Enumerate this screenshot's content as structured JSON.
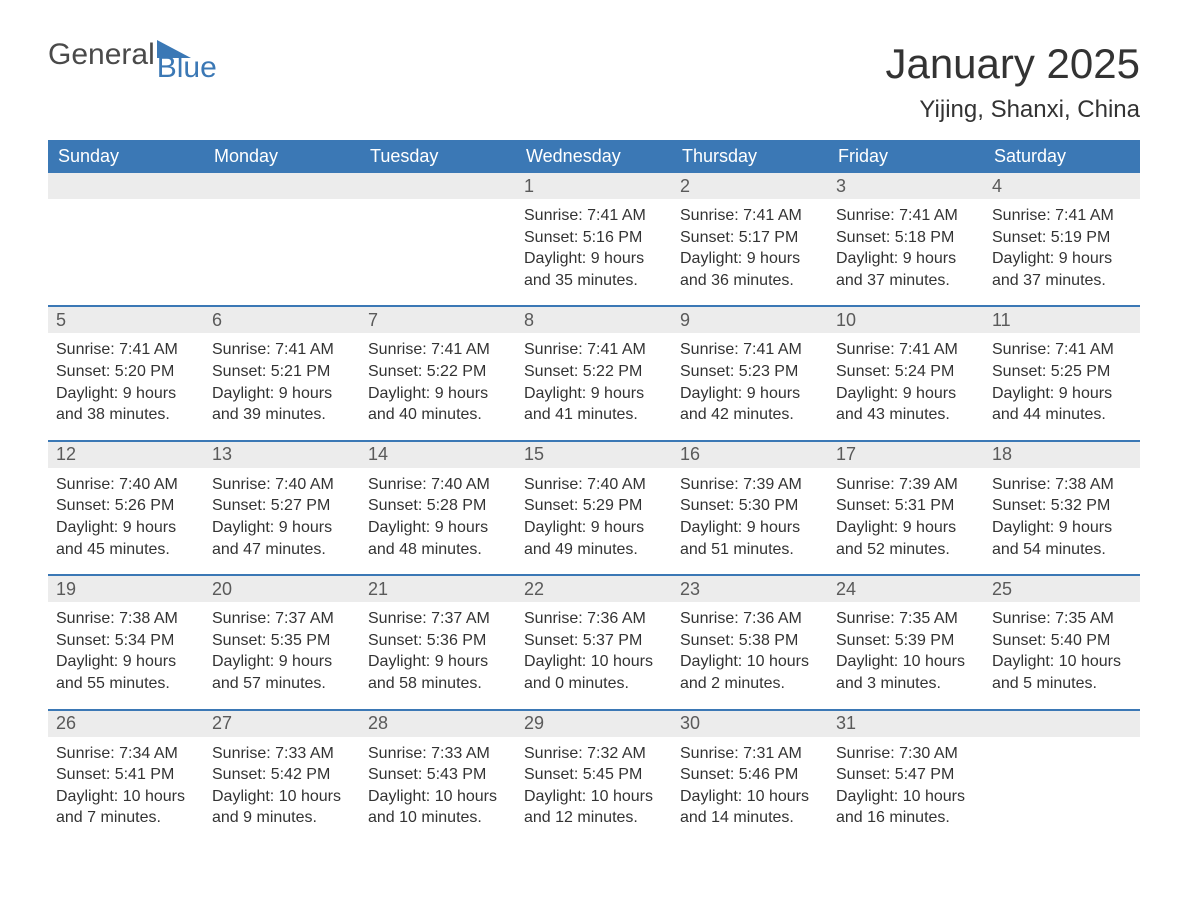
{
  "colors": {
    "header_bg": "#3b78b5",
    "header_text": "#ffffff",
    "daynum_bg": "#ececec",
    "daynum_text": "#5a5a5a",
    "body_text": "#333333",
    "week_border": "#3b78b5",
    "logo_gray": "#4a4a4a",
    "logo_blue": "#3b78b5",
    "background": "#ffffff"
  },
  "typography": {
    "title_fontsize": 42,
    "location_fontsize": 24,
    "header_fontsize": 18,
    "daynum_fontsize": 18,
    "body_fontsize": 16,
    "logo_fontsize": 30
  },
  "logo": {
    "text1": "General",
    "text2": "Blue"
  },
  "title": "January 2025",
  "location": "Yijing, Shanxi, China",
  "day_headers": [
    "Sunday",
    "Monday",
    "Tuesday",
    "Wednesday",
    "Thursday",
    "Friday",
    "Saturday"
  ],
  "labels": {
    "sunrise": "Sunrise: ",
    "sunset": "Sunset: ",
    "daylight": "Daylight: "
  },
  "weeks": [
    [
      null,
      null,
      null,
      {
        "n": "1",
        "sunrise": "7:41 AM",
        "sunset": "5:16 PM",
        "daylight": "9 hours and 35 minutes."
      },
      {
        "n": "2",
        "sunrise": "7:41 AM",
        "sunset": "5:17 PM",
        "daylight": "9 hours and 36 minutes."
      },
      {
        "n": "3",
        "sunrise": "7:41 AM",
        "sunset": "5:18 PM",
        "daylight": "9 hours and 37 minutes."
      },
      {
        "n": "4",
        "sunrise": "7:41 AM",
        "sunset": "5:19 PM",
        "daylight": "9 hours and 37 minutes."
      }
    ],
    [
      {
        "n": "5",
        "sunrise": "7:41 AM",
        "sunset": "5:20 PM",
        "daylight": "9 hours and 38 minutes."
      },
      {
        "n": "6",
        "sunrise": "7:41 AM",
        "sunset": "5:21 PM",
        "daylight": "9 hours and 39 minutes."
      },
      {
        "n": "7",
        "sunrise": "7:41 AM",
        "sunset": "5:22 PM",
        "daylight": "9 hours and 40 minutes."
      },
      {
        "n": "8",
        "sunrise": "7:41 AM",
        "sunset": "5:22 PM",
        "daylight": "9 hours and 41 minutes."
      },
      {
        "n": "9",
        "sunrise": "7:41 AM",
        "sunset": "5:23 PM",
        "daylight": "9 hours and 42 minutes."
      },
      {
        "n": "10",
        "sunrise": "7:41 AM",
        "sunset": "5:24 PM",
        "daylight": "9 hours and 43 minutes."
      },
      {
        "n": "11",
        "sunrise": "7:41 AM",
        "sunset": "5:25 PM",
        "daylight": "9 hours and 44 minutes."
      }
    ],
    [
      {
        "n": "12",
        "sunrise": "7:40 AM",
        "sunset": "5:26 PM",
        "daylight": "9 hours and 45 minutes."
      },
      {
        "n": "13",
        "sunrise": "7:40 AM",
        "sunset": "5:27 PM",
        "daylight": "9 hours and 47 minutes."
      },
      {
        "n": "14",
        "sunrise": "7:40 AM",
        "sunset": "5:28 PM",
        "daylight": "9 hours and 48 minutes."
      },
      {
        "n": "15",
        "sunrise": "7:40 AM",
        "sunset": "5:29 PM",
        "daylight": "9 hours and 49 minutes."
      },
      {
        "n": "16",
        "sunrise": "7:39 AM",
        "sunset": "5:30 PM",
        "daylight": "9 hours and 51 minutes."
      },
      {
        "n": "17",
        "sunrise": "7:39 AM",
        "sunset": "5:31 PM",
        "daylight": "9 hours and 52 minutes."
      },
      {
        "n": "18",
        "sunrise": "7:38 AM",
        "sunset": "5:32 PM",
        "daylight": "9 hours and 54 minutes."
      }
    ],
    [
      {
        "n": "19",
        "sunrise": "7:38 AM",
        "sunset": "5:34 PM",
        "daylight": "9 hours and 55 minutes."
      },
      {
        "n": "20",
        "sunrise": "7:37 AM",
        "sunset": "5:35 PM",
        "daylight": "9 hours and 57 minutes."
      },
      {
        "n": "21",
        "sunrise": "7:37 AM",
        "sunset": "5:36 PM",
        "daylight": "9 hours and 58 minutes."
      },
      {
        "n": "22",
        "sunrise": "7:36 AM",
        "sunset": "5:37 PM",
        "daylight": "10 hours and 0 minutes."
      },
      {
        "n": "23",
        "sunrise": "7:36 AM",
        "sunset": "5:38 PM",
        "daylight": "10 hours and 2 minutes."
      },
      {
        "n": "24",
        "sunrise": "7:35 AM",
        "sunset": "5:39 PM",
        "daylight": "10 hours and 3 minutes."
      },
      {
        "n": "25",
        "sunrise": "7:35 AM",
        "sunset": "5:40 PM",
        "daylight": "10 hours and 5 minutes."
      }
    ],
    [
      {
        "n": "26",
        "sunrise": "7:34 AM",
        "sunset": "5:41 PM",
        "daylight": "10 hours and 7 minutes."
      },
      {
        "n": "27",
        "sunrise": "7:33 AM",
        "sunset": "5:42 PM",
        "daylight": "10 hours and 9 minutes."
      },
      {
        "n": "28",
        "sunrise": "7:33 AM",
        "sunset": "5:43 PM",
        "daylight": "10 hours and 10 minutes."
      },
      {
        "n": "29",
        "sunrise": "7:32 AM",
        "sunset": "5:45 PM",
        "daylight": "10 hours and 12 minutes."
      },
      {
        "n": "30",
        "sunrise": "7:31 AM",
        "sunset": "5:46 PM",
        "daylight": "10 hours and 14 minutes."
      },
      {
        "n": "31",
        "sunrise": "7:30 AM",
        "sunset": "5:47 PM",
        "daylight": "10 hours and 16 minutes."
      },
      null
    ]
  ]
}
